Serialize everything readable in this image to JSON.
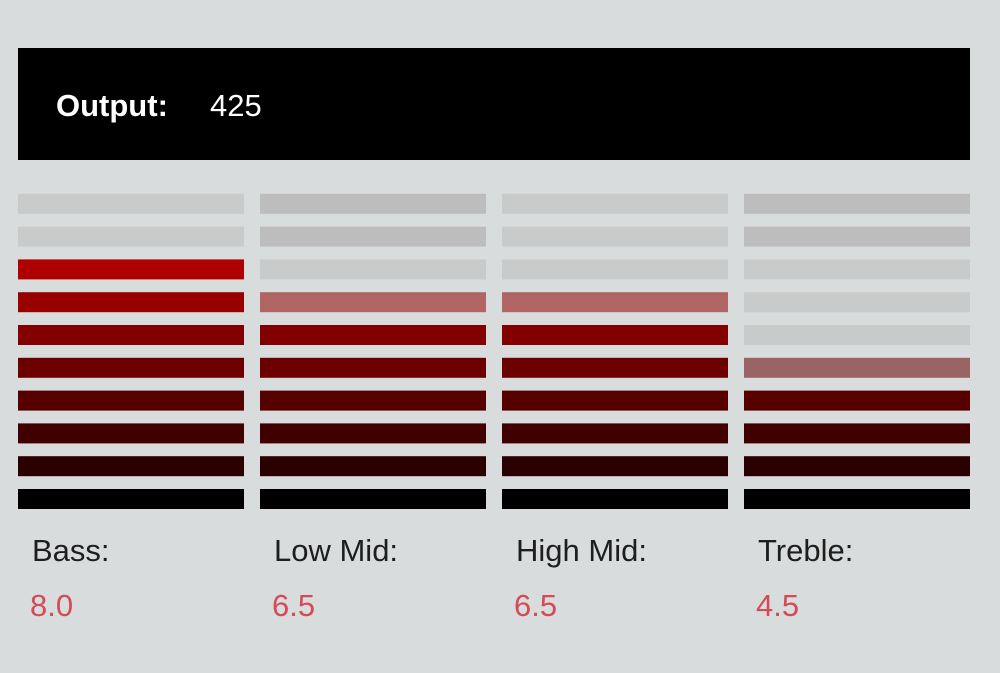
{
  "output": {
    "label": "Output:",
    "value": "425"
  },
  "bands": [
    {
      "label": "Bass:",
      "value": "8.0"
    },
    {
      "label": "Low Mid:",
      "value": "6.5"
    },
    {
      "label": "High Mid:",
      "value": "6.5"
    },
    {
      "label": "Treble:",
      "value": "4.5"
    }
  ]
}
